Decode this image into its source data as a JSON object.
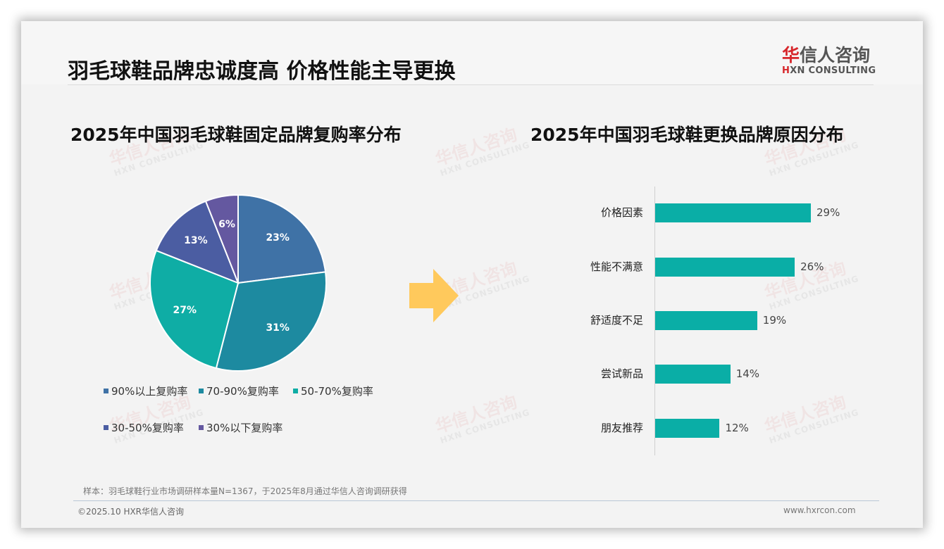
{
  "header": {
    "title": "羽毛球鞋品牌忠诚度高 价格性能主导更换",
    "logo": {
      "cn_accent": "华",
      "cn_rest": "信人咨询",
      "en_accent": "H",
      "en_rest": "XN CONSULTING"
    }
  },
  "watermark": {
    "cn": "华信人咨询",
    "en": "HXN CONSULTING"
  },
  "left_chart": {
    "title": "2025年中国羽毛球鞋固定品牌复购率分布",
    "slices": [
      {
        "label": "90%以上复购率",
        "value": 23,
        "display": "23%",
        "color": "#3f72a6"
      },
      {
        "label": "70-90%复购率",
        "value": 31,
        "display": "31%",
        "color": "#1d8aa0"
      },
      {
        "label": "50-70%复购率",
        "value": 27,
        "display": "27%",
        "color": "#0fada5"
      },
      {
        "label": "30-50%复购率",
        "value": 13,
        "display": "13%",
        "color": "#4b5da2"
      },
      {
        "label": "30%以下复购率",
        "value": 6,
        "display": "6%",
        "color": "#6458a0"
      }
    ]
  },
  "arrow": {
    "color": "#ffc95c",
    "icon": "right-arrow-icon"
  },
  "right_chart": {
    "title": "2025年中国羽毛球鞋更换品牌原因分布",
    "bar_color": "#0aaea6",
    "bars": [
      {
        "label": "价格因素",
        "value": 29,
        "display": "29%"
      },
      {
        "label": "性能不满意",
        "value": 26,
        "display": "26%"
      },
      {
        "label": "舒适度不足",
        "value": 19,
        "display": "19%"
      },
      {
        "label": "尝试新品",
        "value": 14,
        "display": "14%"
      },
      {
        "label": "朋友推荐",
        "value": 12,
        "display": "12%"
      }
    ]
  },
  "chart_data": [
    {
      "type": "pie",
      "title": "2025年中国羽毛球鞋固定品牌复购率分布",
      "categories": [
        "90%以上复购率",
        "70-90%复购率",
        "50-70%复购率",
        "30-50%复购率",
        "30%以下复购率"
      ],
      "values": [
        23,
        31,
        27,
        13,
        6
      ],
      "unit": "%",
      "legend_position": "bottom",
      "colors": [
        "#3f72a6",
        "#1d8aa0",
        "#0fada5",
        "#4b5da2",
        "#6458a0"
      ]
    },
    {
      "type": "bar",
      "orientation": "horizontal",
      "title": "2025年中国羽毛球鞋更换品牌原因分布",
      "categories": [
        "价格因素",
        "性能不满意",
        "舒适度不足",
        "尝试新品",
        "朋友推荐"
      ],
      "values": [
        29,
        26,
        19,
        14,
        12
      ],
      "unit": "%",
      "xlabel": "",
      "ylabel": "",
      "grid": false,
      "data_labels": true
    }
  ],
  "footer": {
    "note": "样本：羽毛球鞋行业市场调研样本量N=1367，于2025年8月通过华信人咨询调研获得",
    "copyright": "©2025.10 HXR华信人咨询",
    "website": "www.hxrcon.com"
  }
}
